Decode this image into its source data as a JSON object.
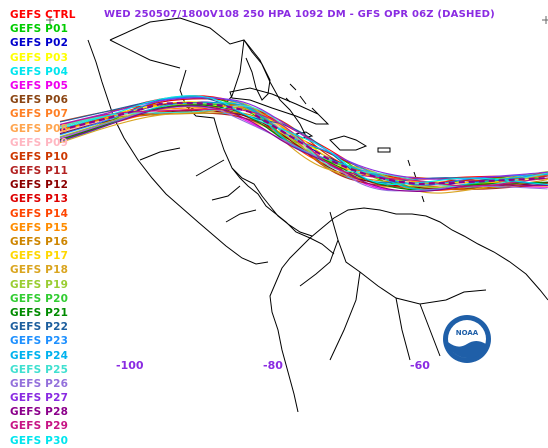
{
  "title": "WED 250507/1800V108  250 HPA 1092 DM - GFS OPR 06Z (DASHED)",
  "legend": [
    {
      "label": "GEFS CTRL",
      "color": "#ff0000"
    },
    {
      "label": "GEFS P01",
      "color": "#00cc00"
    },
    {
      "label": "GEFS P02",
      "color": "#0000cc"
    },
    {
      "label": "GEFS P03",
      "color": "#ffff00"
    },
    {
      "label": "GEFS P04",
      "color": "#00e5ee"
    },
    {
      "label": "GEFS P05",
      "color": "#ee00ee"
    },
    {
      "label": "GEFS P06",
      "color": "#8b4513"
    },
    {
      "label": "GEFS P07",
      "color": "#ff7f24"
    },
    {
      "label": "GEFS P08",
      "color": "#ffa54f"
    },
    {
      "label": "GEFS P09",
      "color": "#ffb6c1"
    },
    {
      "label": "GEFS P10",
      "color": "#cd3700"
    },
    {
      "label": "GEFS P11",
      "color": "#b22222"
    },
    {
      "label": "GEFS P12",
      "color": "#8b0000"
    },
    {
      "label": "GEFS P13",
      "color": "#dd0000"
    },
    {
      "label": "GEFS P14",
      "color": "#ff4500"
    },
    {
      "label": "GEFS P15",
      "color": "#ff8c00"
    },
    {
      "label": "GEFS P16",
      "color": "#cd8500"
    },
    {
      "label": "GEFS P17",
      "color": "#ffd700"
    },
    {
      "label": "GEFS P18",
      "color": "#daa520"
    },
    {
      "label": "GEFS P19",
      "color": "#9acd32"
    },
    {
      "label": "GEFS P20",
      "color": "#32cd32"
    },
    {
      "label": "GEFS P21",
      "color": "#008b00"
    },
    {
      "label": "GEFS P22",
      "color": "#1e5f9e"
    },
    {
      "label": "GEFS P23",
      "color": "#1e90ff"
    },
    {
      "label": "GEFS P24",
      "color": "#00b2ee"
    },
    {
      "label": "GEFS P25",
      "color": "#40e0d0"
    },
    {
      "label": "GEFS P26",
      "color": "#9370db"
    },
    {
      "label": "GEFS P27",
      "color": "#8a2be2"
    },
    {
      "label": "GEFS P28",
      "color": "#8b008b"
    },
    {
      "label": "GEFS P29",
      "color": "#c71585"
    },
    {
      "label": "GEFS P30",
      "color": "#00e5ee"
    }
  ],
  "x_ticks": [
    "-100",
    "-80",
    "-60"
  ],
  "logo": {
    "text": "NOAA"
  },
  "colors": {
    "background": "#ffffff",
    "land": "#000000",
    "axis_text": "#8a2be2",
    "logo_blue": "#1f5fa8"
  }
}
